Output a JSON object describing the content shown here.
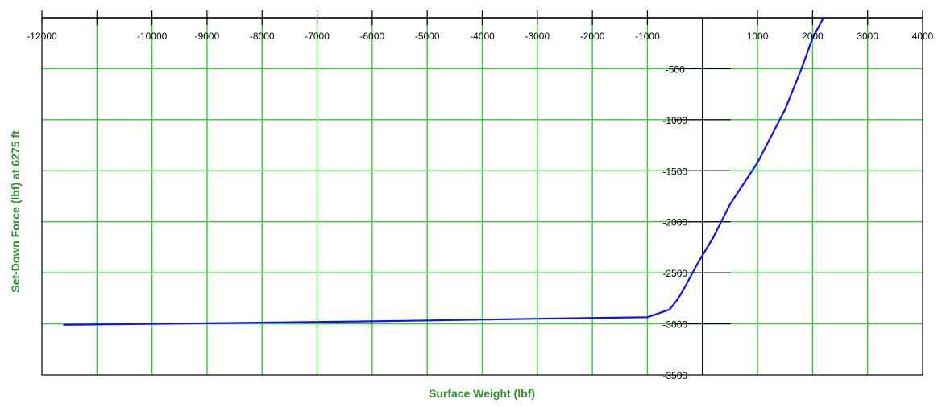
{
  "colors": {
    "grid": "#33cc33",
    "axis": "#000000",
    "series": "#1010ff",
    "axis_title": "#2f8f2f",
    "background": "#ffffff"
  },
  "chart_data": {
    "type": "line",
    "title": "",
    "xlabel": "Surface Weight (lbf)",
    "ylabel": "Set-Down Force (lbf) at 6275 ft",
    "xlim": [
      -12000,
      4000
    ],
    "ylim": [
      -3500,
      0
    ],
    "grid": true,
    "x_ticks": [
      -12000,
      -10000,
      -9000,
      -8000,
      -7000,
      -6000,
      -5000,
      -4000,
      -3000,
      -2000,
      -1000,
      1000,
      2000,
      3000,
      4000
    ],
    "x_grid": [
      -11000,
      -10000,
      -9000,
      -8000,
      -7000,
      -6000,
      -5000,
      -4000,
      -3000,
      -2000,
      -1000,
      1000,
      2000,
      3000
    ],
    "y_ticks": [
      -500,
      -1000,
      -1500,
      -2000,
      -2500,
      -3000,
      -3500
    ],
    "y_grid": [
      -500,
      -1000,
      -1500,
      -2000,
      -2500,
      -3000
    ],
    "series": [
      {
        "x": [
          -11600,
          -9000,
          -6000,
          -3000,
          -1000,
          -600,
          -450,
          -300,
          -100,
          200,
          500,
          1000,
          1500,
          1800,
          2000,
          2200
        ],
        "y": [
          -3010,
          -2995,
          -2975,
          -2950,
          -2935,
          -2860,
          -2760,
          -2620,
          -2420,
          -2150,
          -1830,
          -1420,
          -900,
          -500,
          -200,
          0
        ]
      }
    ]
  }
}
